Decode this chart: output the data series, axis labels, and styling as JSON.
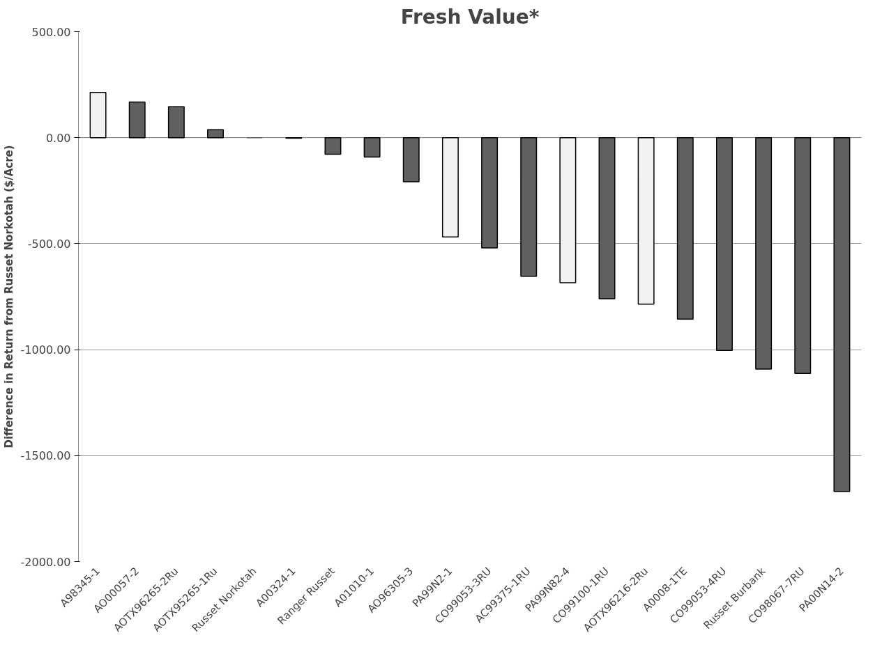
{
  "chart_data": {
    "type": "bar",
    "title": "Fresh Value*",
    "ylabel": "Difference in Return from Russet Norkotah ($/Acre)",
    "categories": [
      "A98345-1",
      "AO00057-2",
      "AOTX96265-2Ru",
      "AOTX95265-1Ru",
      "Russet Norkotah",
      "A00324-1",
      "Ranger Russet",
      "A01010-1",
      "AO96305-3",
      "PA99N2-1",
      "CO99053-3RU",
      "AC99375-1RU",
      "PA99N82-4",
      "CO99100-1RU",
      "AOTX96216-2Ru",
      "A0008-1TE",
      "CO99053-4RU",
      "Russet Burbank",
      "CO98067-7RU",
      "PA00N14-2"
    ],
    "values": [
      213,
      168,
      146,
      38,
      0,
      -3,
      -78,
      -91,
      -208,
      -468,
      -520,
      -654,
      -684,
      -760,
      -785,
      -856,
      -1004,
      -1092,
      -1112,
      -1669
    ],
    "colors": [
      "#f2f2f2",
      "#606060",
      "#606060",
      "#606060",
      "#606060",
      "#f2f2f2",
      "#606060",
      "#606060",
      "#606060",
      "#f2f2f2",
      "#606060",
      "#606060",
      "#f2f2f2",
      "#606060",
      "#f2f2f2",
      "#606060",
      "#606060",
      "#606060",
      "#606060",
      "#606060"
    ],
    "ylim": [
      -2000,
      500
    ],
    "yticks": [
      {
        "value": -2000,
        "label": "-2000.00"
      },
      {
        "value": -1500,
        "label": "-1500.00"
      },
      {
        "value": -1000,
        "label": "-1000.00"
      },
      {
        "value": -500,
        "label": "-500.00"
      },
      {
        "value": 0,
        "label": "0.00"
      },
      {
        "value": 500,
        "label": "500.00"
      }
    ],
    "grid": "y"
  }
}
